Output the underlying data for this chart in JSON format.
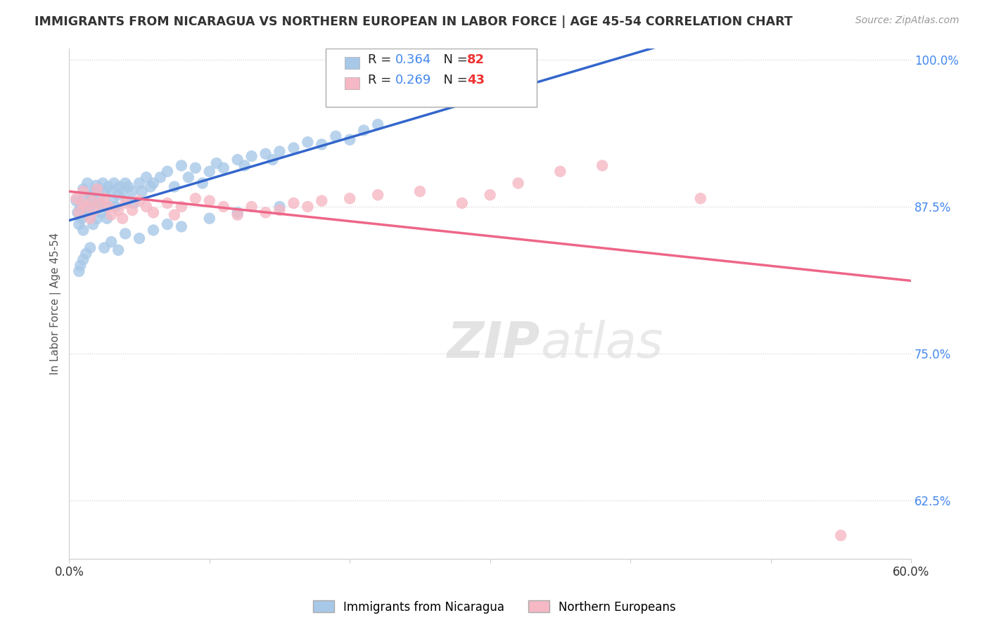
{
  "title": "IMMIGRANTS FROM NICARAGUA VS NORTHERN EUROPEAN IN LABOR FORCE | AGE 45-54 CORRELATION CHART",
  "source": "Source: ZipAtlas.com",
  "ylabel": "In Labor Force | Age 45-54",
  "xlim": [
    0.0,
    0.6
  ],
  "ylim": [
    0.575,
    1.01
  ],
  "blue_R": 0.364,
  "blue_N": 82,
  "pink_R": 0.269,
  "pink_N": 43,
  "blue_color": "#a8c8e8",
  "pink_color": "#f5b8c4",
  "blue_line_color": "#3366cc",
  "pink_line_color": "#ee6688",
  "legend_label_blue": "Immigrants from Nicaragua",
  "legend_label_pink": "Northern Europeans",
  "watermark_text": "ZIPatlas",
  "bg_color": "#ffffff",
  "grid_color": "#cccccc",
  "title_color": "#333333",
  "axis_label_color": "#555555",
  "tick_color_y": "#4488ee",
  "tick_color_x": "#333333",
  "legend_r_color": "#4488ee",
  "legend_n_color": "#ee3333",
  "blue_x": [
    0.005,
    0.006,
    0.007,
    0.008,
    0.009,
    0.01,
    0.01,
    0.011,
    0.012,
    0.013,
    0.014,
    0.015,
    0.016,
    0.017,
    0.018,
    0.019,
    0.02,
    0.02,
    0.021,
    0.022,
    0.023,
    0.024,
    0.025,
    0.026,
    0.027,
    0.028,
    0.03,
    0.031,
    0.032,
    0.033,
    0.035,
    0.036,
    0.038,
    0.04,
    0.041,
    0.042,
    0.045,
    0.046,
    0.05,
    0.052,
    0.055,
    0.058,
    0.06,
    0.065,
    0.07,
    0.075,
    0.08,
    0.085,
    0.09,
    0.095,
    0.1,
    0.105,
    0.11,
    0.12,
    0.125,
    0.13,
    0.14,
    0.145,
    0.15,
    0.16,
    0.17,
    0.18,
    0.19,
    0.2,
    0.21,
    0.22,
    0.025,
    0.03,
    0.035,
    0.04,
    0.05,
    0.06,
    0.07,
    0.08,
    0.1,
    0.12,
    0.15,
    0.007,
    0.008,
    0.01,
    0.012,
    0.015
  ],
  "blue_y": [
    0.88,
    0.87,
    0.86,
    0.875,
    0.865,
    0.89,
    0.855,
    0.882,
    0.868,
    0.895,
    0.872,
    0.885,
    0.876,
    0.86,
    0.888,
    0.893,
    0.878,
    0.865,
    0.89,
    0.882,
    0.87,
    0.895,
    0.887,
    0.875,
    0.865,
    0.892,
    0.888,
    0.88,
    0.895,
    0.875,
    0.885,
    0.892,
    0.888,
    0.895,
    0.88,
    0.892,
    0.888,
    0.878,
    0.895,
    0.888,
    0.9,
    0.892,
    0.895,
    0.9,
    0.905,
    0.892,
    0.91,
    0.9,
    0.908,
    0.895,
    0.905,
    0.912,
    0.908,
    0.915,
    0.91,
    0.918,
    0.92,
    0.915,
    0.922,
    0.925,
    0.93,
    0.928,
    0.935,
    0.932,
    0.94,
    0.945,
    0.84,
    0.845,
    0.838,
    0.852,
    0.848,
    0.855,
    0.86,
    0.858,
    0.865,
    0.87,
    0.875,
    0.82,
    0.825,
    0.83,
    0.835,
    0.84
  ],
  "pink_x": [
    0.005,
    0.007,
    0.009,
    0.01,
    0.012,
    0.015,
    0.016,
    0.018,
    0.02,
    0.022,
    0.025,
    0.028,
    0.03,
    0.035,
    0.038,
    0.04,
    0.045,
    0.05,
    0.055,
    0.06,
    0.07,
    0.075,
    0.08,
    0.09,
    0.1,
    0.11,
    0.12,
    0.13,
    0.14,
    0.15,
    0.16,
    0.17,
    0.18,
    0.2,
    0.22,
    0.25,
    0.28,
    0.3,
    0.32,
    0.35,
    0.38,
    0.45,
    0.55
  ],
  "pink_y": [
    0.882,
    0.87,
    0.878,
    0.888,
    0.875,
    0.865,
    0.88,
    0.872,
    0.89,
    0.878,
    0.882,
    0.875,
    0.868,
    0.872,
    0.865,
    0.878,
    0.872,
    0.88,
    0.875,
    0.87,
    0.878,
    0.868,
    0.875,
    0.882,
    0.88,
    0.875,
    0.868,
    0.875,
    0.87,
    0.872,
    0.878,
    0.875,
    0.88,
    0.882,
    0.885,
    0.888,
    0.878,
    0.885,
    0.895,
    0.905,
    0.91,
    0.882,
    0.595
  ]
}
